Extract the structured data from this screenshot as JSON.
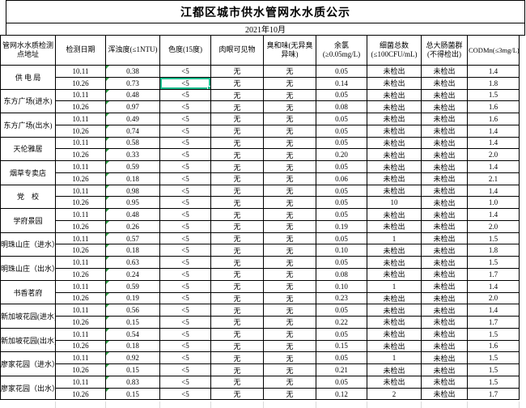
{
  "title": "江都区城市供水管网水水质公示",
  "subtitle": "2021年10月",
  "colors": {
    "selection_border": "#1ebe8f",
    "error_indicator": "#2e9e44",
    "table_border": "#000000",
    "faint_gridline": "#d9d9d9"
  },
  "columns": [
    {
      "key": "address",
      "label": "管网水水质检测点地址"
    },
    {
      "key": "date",
      "label": "检测日期"
    },
    {
      "key": "turbidity",
      "label": "浑浊度(≤1NTU)"
    },
    {
      "key": "color",
      "label": "色度(15度)"
    },
    {
      "key": "visible",
      "label": "肉眼可见物"
    },
    {
      "key": "odor",
      "label": "臭和味(无异臭异味)"
    },
    {
      "key": "chlorine",
      "label": "余氯(≥0.05mg/L)"
    },
    {
      "key": "bacteria",
      "label": "细菌总数(≤100CFU/mL)"
    },
    {
      "key": "coliform",
      "label": "总大肠菌群(不得检出)"
    },
    {
      "key": "cod",
      "label": "CODMn(≤3mg/L)"
    }
  ],
  "row_keys": [
    "date",
    "turbidity",
    "color",
    "visible",
    "odor",
    "chlorine",
    "bacteria",
    "coliform",
    "cod"
  ],
  "sites": [
    {
      "name": "供 电 局",
      "rows": [
        [
          "10.11",
          "0.38",
          "<5",
          "无",
          "无",
          "0.05",
          "未检出",
          "未检出",
          "1.4"
        ],
        [
          "10.26",
          "0.73",
          "<5",
          "无",
          "无",
          "0.14",
          "未检出",
          "未检出",
          "1.8"
        ]
      ]
    },
    {
      "name": "东方广场(进水)",
      "rows": [
        [
          "10.11",
          "0.48",
          "<5",
          "无",
          "无",
          "0.05",
          "未检出",
          "未检出",
          "1.5"
        ],
        [
          "10.26",
          "0.97",
          "<5",
          "无",
          "无",
          "0.08",
          "未检出",
          "未检出",
          "1.6"
        ]
      ]
    },
    {
      "name": "东方广场(出水)",
      "rows": [
        [
          "10.11",
          "0.49",
          "<5",
          "无",
          "无",
          "0.05",
          "未检出",
          "未检出",
          "1.6"
        ],
        [
          "10.26",
          "0.74",
          "<5",
          "无",
          "无",
          "0.05",
          "未检出",
          "未检出",
          "1.4"
        ]
      ]
    },
    {
      "name": "天伦雅居",
      "rows": [
        [
          "10.11",
          "0.58",
          "<5",
          "无",
          "无",
          "0.05",
          "未检出",
          "未检出",
          "1.4"
        ],
        [
          "10.26",
          "0.33",
          "<5",
          "无",
          "无",
          "0.20",
          "未检出",
          "未检出",
          "2.0"
        ]
      ]
    },
    {
      "name": "烟草专卖店",
      "rows": [
        [
          "10.11",
          "0.59",
          "<5",
          "无",
          "无",
          "0.05",
          "未检出",
          "未检出",
          "1.4"
        ],
        [
          "10.26",
          "0.18",
          "<5",
          "无",
          "无",
          "0.06",
          "未检出",
          "未检出",
          "2.1"
        ]
      ]
    },
    {
      "name": "党　校",
      "rows": [
        [
          "10.11",
          "0.98",
          "<5",
          "无",
          "无",
          "0.05",
          "未检出",
          "未检出",
          "1.4"
        ],
        [
          "10.26",
          "0.95",
          "<5",
          "无",
          "无",
          "0.05",
          "10",
          "未检出",
          "1.0"
        ]
      ]
    },
    {
      "name": "学府景园",
      "rows": [
        [
          "10.11",
          "0.48",
          "<5",
          "无",
          "无",
          "0.05",
          "未检出",
          "未检出",
          "1.4"
        ],
        [
          "10.26",
          "0.26",
          "<5",
          "无",
          "无",
          "0.19",
          "未检出",
          "未检出",
          "2.0"
        ]
      ]
    },
    {
      "name": "明珠山庄（进水）",
      "rows": [
        [
          "10.11",
          "0.57",
          "<5",
          "无",
          "无",
          "0.05",
          "1",
          "未检出",
          "1.5"
        ],
        [
          "10.26",
          "0.18",
          "<5",
          "无",
          "无",
          "0.10",
          "未检出",
          "未检出",
          "1.8"
        ]
      ]
    },
    {
      "name": "明珠山庄（出水）",
      "rows": [
        [
          "10.11",
          "0.63",
          "<5",
          "无",
          "无",
          "0.05",
          "未检出",
          "未检出",
          "1.5"
        ],
        [
          "10.26",
          "0.24",
          "<5",
          "无",
          "无",
          "0.08",
          "未检出",
          "未检出",
          "1.7"
        ]
      ]
    },
    {
      "name": "书香茗府",
      "rows": [
        [
          "10.11",
          "0.59",
          "<5",
          "无",
          "无",
          "0.10",
          "1",
          "未检出",
          "1.4"
        ],
        [
          "10.26",
          "0.19",
          "<5",
          "无",
          "无",
          "0.23",
          "未检出",
          "未检出",
          "2.0"
        ]
      ]
    },
    {
      "name": "新加坡花园(进水)",
      "rows": [
        [
          "10.11",
          "0.56",
          "<5",
          "无",
          "无",
          "0.05",
          "未检出",
          "未检出",
          "1.4"
        ],
        [
          "10.26",
          "0.15",
          "<5",
          "无",
          "无",
          "0.22",
          "未检出",
          "未检出",
          "1.7"
        ]
      ]
    },
    {
      "name": "新加坡花园(出水)",
      "rows": [
        [
          "10.11",
          "0.54",
          "<5",
          "无",
          "无",
          "0.05",
          "未检出",
          "未检出",
          "1.5"
        ],
        [
          "10.26",
          "0.18",
          "<5",
          "无",
          "无",
          "0.15",
          "未检出",
          "未检出",
          "1.6"
        ]
      ]
    },
    {
      "name": "廖家花园（进水）",
      "rows": [
        [
          "10.11",
          "0.92",
          "<5",
          "无",
          "无",
          "0.05",
          "1",
          "未检出",
          "1.5"
        ],
        [
          "10.26",
          "0.15",
          "<5",
          "无",
          "无",
          "0.21",
          "未检出",
          "未检出",
          "1.5"
        ]
      ]
    },
    {
      "name": "廖家花园（出水）",
      "rows": [
        [
          "10.11",
          "0.83",
          "<5",
          "无",
          "无",
          "0.05",
          "未检出",
          "未检出",
          "1.5"
        ],
        [
          "10.26",
          "0.15",
          "<5",
          "无",
          "无",
          "0.12",
          "2",
          "未检出",
          "1.7"
        ]
      ]
    }
  ],
  "selection": {
    "site_index": 0,
    "row_index": 1,
    "column_key": "color"
  }
}
